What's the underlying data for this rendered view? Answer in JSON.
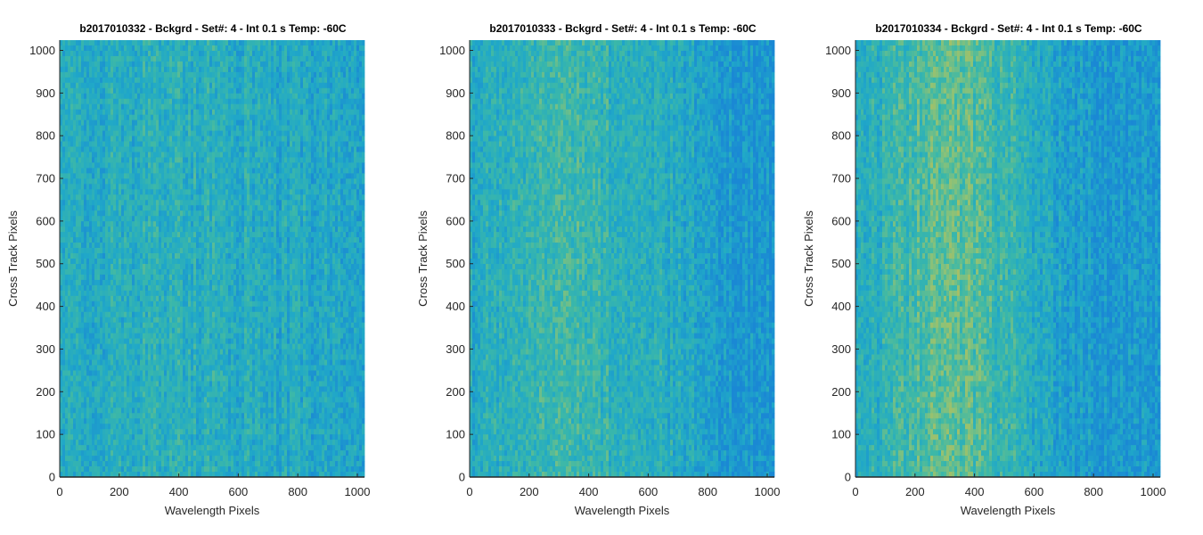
{
  "chart_data": [
    {
      "type": "heatmap",
      "title": "b2017010332 - Bckgrd - Set#: 4 - Int 0.1 s Temp: -60C",
      "xlabel": "Wavelength Pixels",
      "ylabel": "Cross Track Pixels",
      "xlim": [
        0,
        1024
      ],
      "ylim": [
        0,
        1024
      ],
      "xticks": [
        0,
        200,
        400,
        600,
        800,
        1000
      ],
      "yticks": [
        0,
        100,
        200,
        300,
        400,
        500,
        600,
        700,
        800,
        900,
        1000
      ],
      "profile": [
        0.28,
        0.3,
        0.33,
        0.36,
        0.35,
        0.32,
        0.3,
        0.28,
        0.26,
        0.25
      ],
      "colormap": [
        "#1a88d4",
        "#20a8c8",
        "#3cb8a8",
        "#8ec276",
        "#cdbb4c"
      ]
    },
    {
      "type": "heatmap",
      "title": "b2017010333 - Bckgrd - Set#: 4 - Int 0.1 s Temp: -60C",
      "xlabel": "Wavelength Pixels",
      "ylabel": "Cross Track Pixels",
      "xlim": [
        0,
        1024
      ],
      "ylim": [
        0,
        1024
      ],
      "xticks": [
        0,
        200,
        400,
        600,
        800,
        1000
      ],
      "yticks": [
        0,
        100,
        200,
        300,
        400,
        500,
        600,
        700,
        800,
        900,
        1000
      ],
      "profile": [
        0.3,
        0.34,
        0.44,
        0.46,
        0.4,
        0.36,
        0.3,
        0.22,
        0.12,
        0.1
      ],
      "colormap": [
        "#1a88d4",
        "#20a8c8",
        "#3cb8a8",
        "#8ec276",
        "#cdbb4c"
      ]
    },
    {
      "type": "heatmap",
      "title": "b2017010334 - Bckgrd - Set#: 4 - Int 0.1 s Temp: -60C",
      "xlabel": "Wavelength Pixels",
      "ylabel": "Cross Track Pixels",
      "xlim": [
        0,
        1024
      ],
      "ylim": [
        0,
        1024
      ],
      "xticks": [
        0,
        200,
        400,
        600,
        800,
        1000
      ],
      "yticks": [
        0,
        100,
        200,
        300,
        400,
        500,
        600,
        700,
        800,
        900,
        1000
      ],
      "profile": [
        0.32,
        0.4,
        0.56,
        0.64,
        0.5,
        0.36,
        0.2,
        0.14,
        0.1,
        0.14
      ],
      "colormap": [
        "#1a88d4",
        "#20a8c8",
        "#3cb8a8",
        "#8ec276",
        "#cdbb4c"
      ]
    }
  ]
}
